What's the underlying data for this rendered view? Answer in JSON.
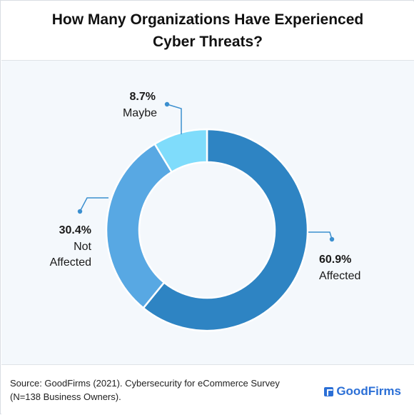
{
  "title_line1": "How Many Organizations Have Experienced",
  "title_line2": "Cyber Threats?",
  "source_line1": "Source: GoodFirms (2021). Cybersecurity for eCommerce Survey",
  "source_line2": "(N=138 Business Owners).",
  "brand": "GoodFirms",
  "chart_data": {
    "type": "pie",
    "donut": true,
    "title": "How Many Organizations Have Experienced Cyber Threats?",
    "slices": [
      {
        "label_lines": [
          "Affected"
        ],
        "value": 60.9,
        "value_label": "60.9%",
        "color": "#2e84c3"
      },
      {
        "label_lines": [
          "Not",
          "Affected"
        ],
        "value": 30.4,
        "value_label": "30.4%",
        "color": "#58a8e3"
      },
      {
        "label_lines": [
          "Maybe"
        ],
        "value": 8.7,
        "value_label": "8.7%",
        "color": "#7fdcfb"
      }
    ],
    "leader_color": "#3b8fcf"
  }
}
